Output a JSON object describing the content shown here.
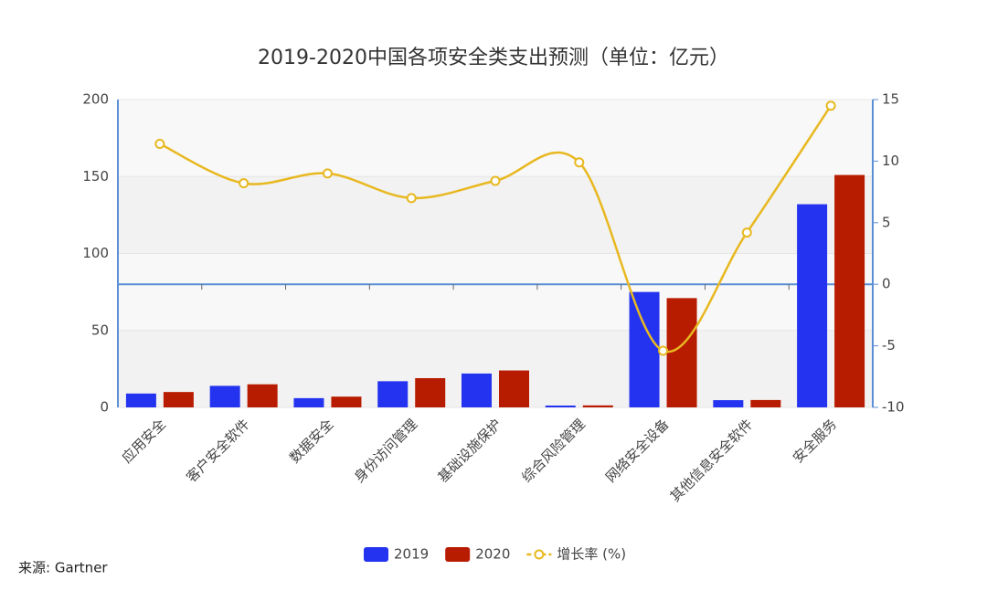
{
  "chart_data": {
    "type": "bar_line",
    "title": "2019-2020中国各项安全类支出预测（单位：亿元）",
    "source": "来源: Gartner",
    "categories": [
      "应用安全",
      "客户安全软件",
      "数据安全",
      "身份访问管理",
      "基础设施保护",
      "综合风险管理",
      "网络安全设备",
      "其他信息安全软件",
      "安全服务"
    ],
    "series": [
      {
        "name": "2019",
        "color": "#2433f0",
        "type": "bar",
        "values": [
          9,
          14,
          6,
          17,
          22,
          1.2,
          75,
          4.7,
          132
        ]
      },
      {
        "name": "2020",
        "color": "#b81c00",
        "type": "bar",
        "values": [
          10,
          15,
          7,
          19,
          24,
          1.3,
          71,
          4.8,
          151
        ]
      },
      {
        "name": "增长率 (%)",
        "color": "#e8b820",
        "type": "line",
        "axis": "y2",
        "values": [
          11.4,
          8.2,
          9.0,
          7.0,
          8.4,
          9.9,
          -5.4,
          4.2,
          14.5
        ]
      }
    ],
    "ylim": [
      0,
      200
    ],
    "yticks": [
      0,
      50,
      100,
      150,
      200
    ],
    "y2lim": [
      -10,
      15
    ],
    "y2ticks": [
      -10,
      -5,
      0,
      5,
      10,
      15
    ],
    "grid": true,
    "legend": "bottom"
  }
}
